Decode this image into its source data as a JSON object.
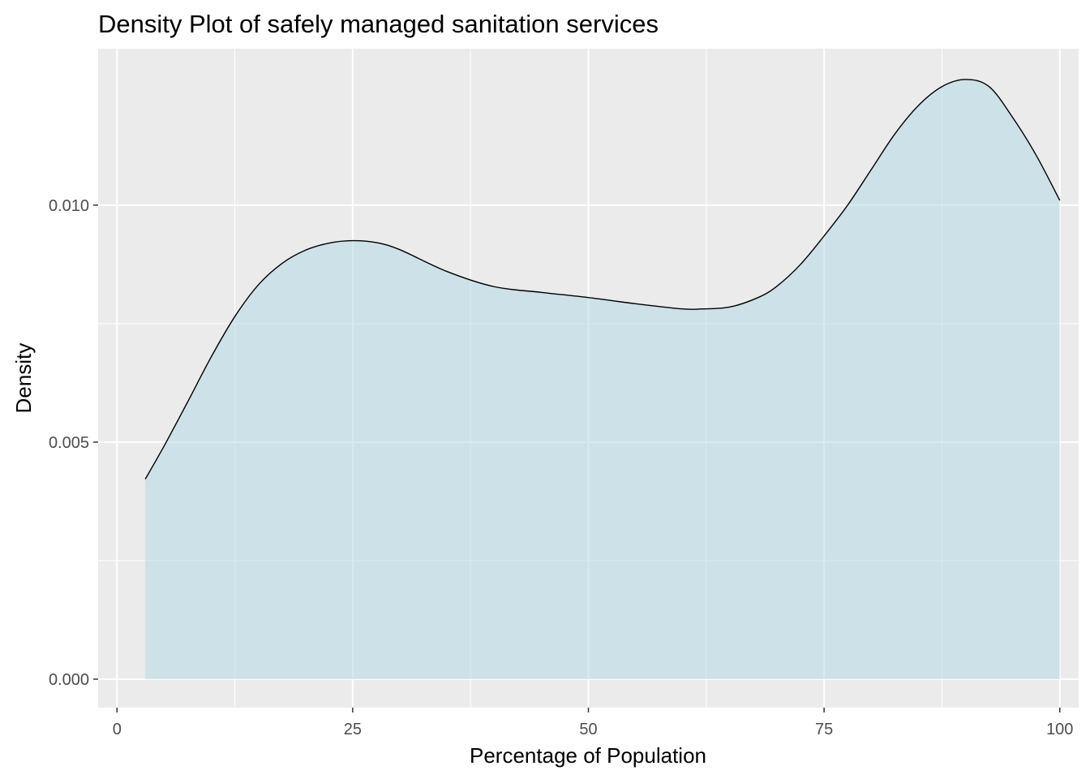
{
  "chart_data": {
    "type": "area",
    "title": "Density Plot of safely managed sanitation services",
    "xlabel": "Percentage of Population",
    "ylabel": "Density",
    "xlim": [
      -2,
      102
    ],
    "ylim": [
      -0.0006,
      0.0133
    ],
    "x_ticks": [
      0,
      25,
      50,
      75,
      100
    ],
    "x_tick_labels": [
      "0",
      "25",
      "50",
      "75",
      "100"
    ],
    "y_ticks": [
      0.0,
      0.005,
      0.01
    ],
    "y_tick_labels": [
      "0.000",
      "0.005",
      "0.010"
    ],
    "grid": true,
    "legend": "none",
    "colors": {
      "panel_background": "#ebebeb",
      "grid": "#ffffff",
      "fill": "#add8e6",
      "fill_opacity": 0.5,
      "line": "#000000",
      "tick_text": "#4d4d4d"
    },
    "series": [
      {
        "x": [
          3,
          5,
          7.5,
          10,
          12.5,
          15,
          17.5,
          20,
          22.5,
          25,
          27.5,
          30,
          35,
          40,
          45,
          50,
          55,
          60,
          62,
          65,
          68,
          70,
          72.5,
          75,
          77.5,
          80,
          82.5,
          85,
          87.5,
          90,
          92.5,
          95,
          97.5,
          100
        ],
        "y": [
          0.00422,
          0.00492,
          0.00585,
          0.0068,
          0.00765,
          0.00832,
          0.00877,
          0.00905,
          0.0092,
          0.00925,
          0.00921,
          0.00906,
          0.0086,
          0.00828,
          0.00816,
          0.00805,
          0.00792,
          0.00781,
          0.00781,
          0.00785,
          0.00805,
          0.00829,
          0.00875,
          0.00935,
          0.01,
          0.01075,
          0.0115,
          0.0121,
          0.0125,
          0.01265,
          0.0125,
          0.01185,
          0.01105,
          0.0101
        ]
      }
    ]
  }
}
